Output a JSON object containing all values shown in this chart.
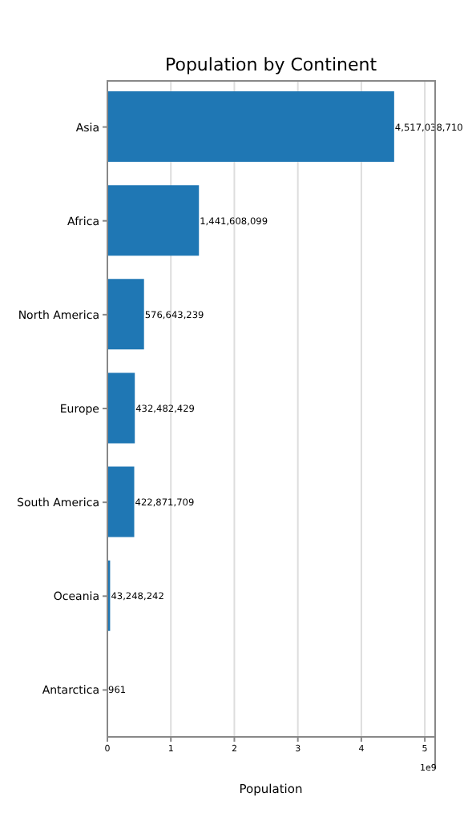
{
  "chart_data": {
    "type": "bar",
    "orientation": "horizontal",
    "title": "Population by Continent",
    "xlabel": "Population",
    "categories": [
      "Asia",
      "Africa",
      "North America",
      "Europe",
      "South America",
      "Oceania",
      "Antarctica"
    ],
    "values": [
      4.517,
      1.442,
      0.577,
      0.432,
      0.423,
      0.043,
      0
    ],
    "color": "#1f77b4",
    "xlim": [
      0,
      5.15
    ],
    "xticks": [
      0,
      1,
      2,
      3,
      4,
      5
    ],
    "annotations": [
      "1e9",
      {
        "text": "4,517,038,710",
        "x": 4.517,
        "y": "Asia"
      },
      {
        "text": "1,441,608,099",
        "x": 1.442,
        "y": "Africa"
      },
      {
        "text": "576,643,239",
        "x": 0.577,
        "y": "North America"
      },
      {
        "text": "432,482,429",
        "x": 0.432,
        "y": "Europe"
      },
      {
        "text": "422,871,709",
        "x": 0.423,
        "y": "South America"
      },
      {
        "text": "43,248,242",
        "x": 0.043,
        "y": "Oceania"
      },
      {
        "text": "961",
        "x": 0,
        "y": "Antarctica"
      }
    ],
    "grid": "x"
  }
}
